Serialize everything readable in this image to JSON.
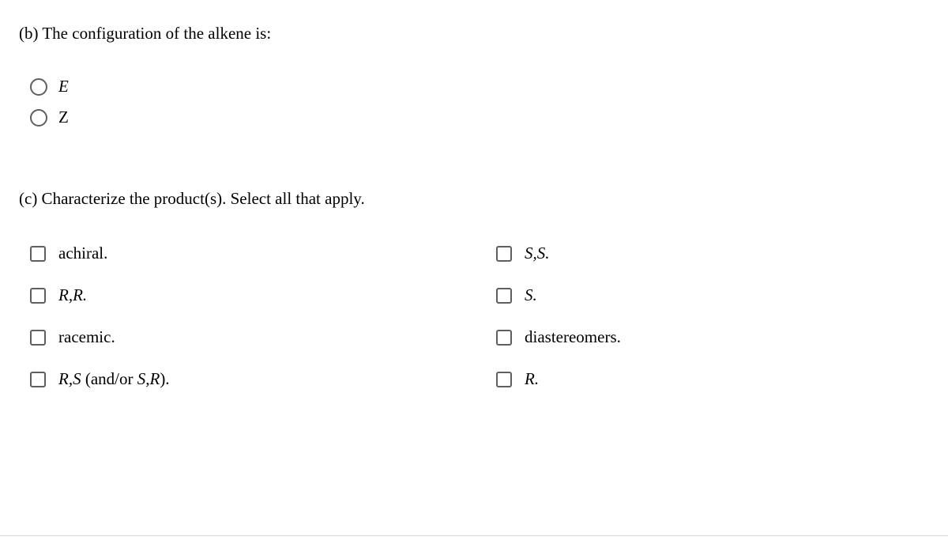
{
  "question_b": {
    "prompt": "(b) The configuration of the alkene is:",
    "options": [
      {
        "label": "E",
        "italic": true
      },
      {
        "label": "Z",
        "italic": false
      }
    ]
  },
  "question_c": {
    "prompt": "(c) Characterize the product(s). Select all that apply.",
    "options_left": [
      {
        "text": "achiral.",
        "italic": false
      },
      {
        "text_html": "R,R.",
        "italic": true
      },
      {
        "text": "racemic.",
        "italic": false
      },
      {
        "text_html": "R,S (and/or S,R).",
        "italic": true,
        "mixed": true
      }
    ],
    "options_right": [
      {
        "text_html": "S,S.",
        "italic": true
      },
      {
        "text_html": "S.",
        "italic": true
      },
      {
        "text": "diastereomers.",
        "italic": false
      },
      {
        "text_html": "R.",
        "italic": true
      }
    ]
  },
  "colors": {
    "border": "#5f5f5f",
    "divider": "#d9d9d9",
    "background": "#ffffff",
    "text": "#000000"
  }
}
